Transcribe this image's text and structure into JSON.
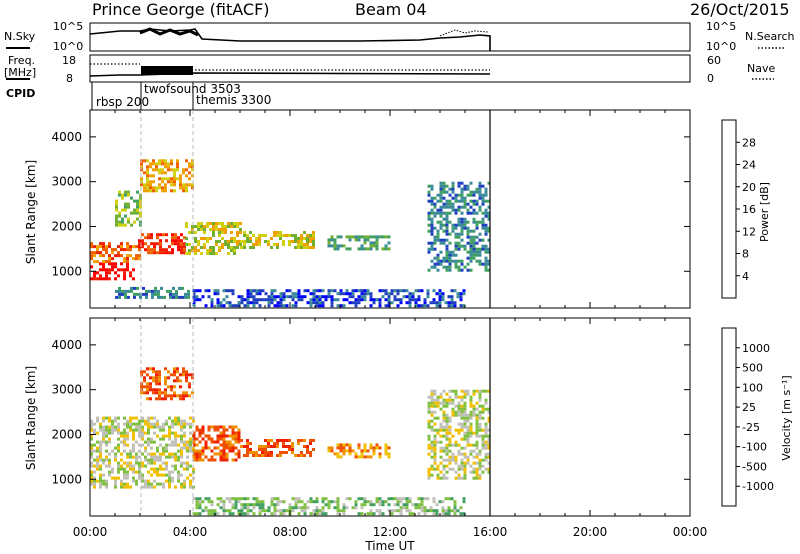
{
  "header": {
    "station": "Prince George (fitACF)",
    "beam": "Beam 04",
    "date": "26/Oct/2015"
  },
  "chart_data": [
    {
      "type": "line",
      "name": "noise-panel",
      "left_label": "N.Sky",
      "right_label": "N.Search",
      "yticks_left": [
        "10^5",
        "10^0"
      ],
      "yticks_right": [
        "10^5",
        "10^0"
      ]
    },
    {
      "type": "line",
      "name": "frequency-panel",
      "left_label": "Freq.",
      "left_unit": "[MHz]",
      "right_label": "Nave",
      "yticks_left": [
        "18",
        "8"
      ],
      "yticks_right": [
        "60",
        "0"
      ]
    },
    {
      "type": "table",
      "name": "cpid-row",
      "label": "CPID",
      "entries": [
        {
          "label": "rbsp 200",
          "start_hour": 0.0
        },
        {
          "label": "twofsound 3503",
          "start_hour": 1.8
        },
        {
          "label": "themis 3300",
          "start_hour": 4.1
        }
      ]
    },
    {
      "type": "heatmap",
      "name": "power-panel",
      "ylabel": "Slant Range [km]",
      "yticks": [
        1000,
        2000,
        3000,
        4000
      ],
      "ylim": [
        180,
        4600
      ],
      "xlim": [
        0,
        24
      ],
      "colorbar_label": "Power [dB]",
      "colorbar_ticks": [
        "28",
        "24",
        "20",
        "16",
        "12",
        "8",
        "4"
      ],
      "colors": [
        "#0000ff",
        "#2040c0",
        "#3a8a9a",
        "#40a060",
        "#70b030",
        "#d0d010",
        "#f0a000",
        "#f06000",
        "#f02000",
        "#ff0000"
      ],
      "regions": [
        {
          "t": [
            0.0,
            1.8
          ],
          "r": [
            800,
            1200
          ],
          "level": 9
        },
        {
          "t": [
            0.0,
            2.0
          ],
          "r": [
            1200,
            1650
          ],
          "level": 7
        },
        {
          "t": [
            1.8,
            3.8
          ],
          "r": [
            1400,
            1850
          ],
          "level": 8
        },
        {
          "t": [
            1.0,
            2.0
          ],
          "r": [
            2000,
            2800
          ],
          "level": 4
        },
        {
          "t": [
            2.0,
            4.1
          ],
          "r": [
            2800,
            3500
          ],
          "level": 6
        },
        {
          "t": [
            3.8,
            6.0
          ],
          "r": [
            1400,
            2100
          ],
          "level": 5
        },
        {
          "t": [
            6.0,
            9.0
          ],
          "r": [
            1500,
            1900
          ],
          "level": 5
        },
        {
          "t": [
            9.5,
            12.0
          ],
          "r": [
            1500,
            1800
          ],
          "level": 3
        },
        {
          "t": [
            13.5,
            16.0
          ],
          "r": [
            1000,
            3000
          ],
          "level": 2
        },
        {
          "t": [
            4.1,
            15.0
          ],
          "r": [
            200,
            600
          ],
          "level": 1
        },
        {
          "t": [
            1.0,
            4.0
          ],
          "r": [
            400,
            650
          ],
          "level": 2
        }
      ]
    },
    {
      "type": "heatmap",
      "name": "velocity-panel",
      "ylabel": "Slant Range [km]",
      "yticks": [
        1000,
        2000,
        3000,
        4000
      ],
      "ylim": [
        180,
        4600
      ],
      "xlim": [
        0,
        24
      ],
      "xticks": [
        "00:00",
        "04:00",
        "08:00",
        "12:00",
        "16:00",
        "20:00",
        "00:00"
      ],
      "xlabel": "Time UT",
      "colorbar_label": "Velocity [m s⁻¹]",
      "colorbar_ticks": [
        "1000",
        "500",
        "100",
        "25",
        "-25",
        "-100",
        "-500",
        "-1000"
      ],
      "colors": [
        "#2040c0",
        "#3a8a9a",
        "#40a060",
        "#80c040",
        "#c0c0b8",
        "#f0c000",
        "#f09000",
        "#f05000",
        "#f02000",
        "#ff0000"
      ],
      "regions": [
        {
          "t": [
            0.0,
            4.1
          ],
          "r": [
            800,
            2400
          ],
          "level": 4
        },
        {
          "t": [
            2.0,
            4.1
          ],
          "r": [
            2800,
            3500
          ],
          "level": 7
        },
        {
          "t": [
            4.1,
            6.0
          ],
          "r": [
            1400,
            2200
          ],
          "level": 7
        },
        {
          "t": [
            6.0,
            9.0
          ],
          "r": [
            1500,
            1900
          ],
          "level": 7
        },
        {
          "t": [
            9.5,
            12.0
          ],
          "r": [
            1500,
            1800
          ],
          "level": 6
        },
        {
          "t": [
            13.5,
            16.0
          ],
          "r": [
            1000,
            3000
          ],
          "level": 4
        },
        {
          "t": [
            4.1,
            15.0
          ],
          "r": [
            200,
            600
          ],
          "level": 3
        }
      ]
    }
  ]
}
